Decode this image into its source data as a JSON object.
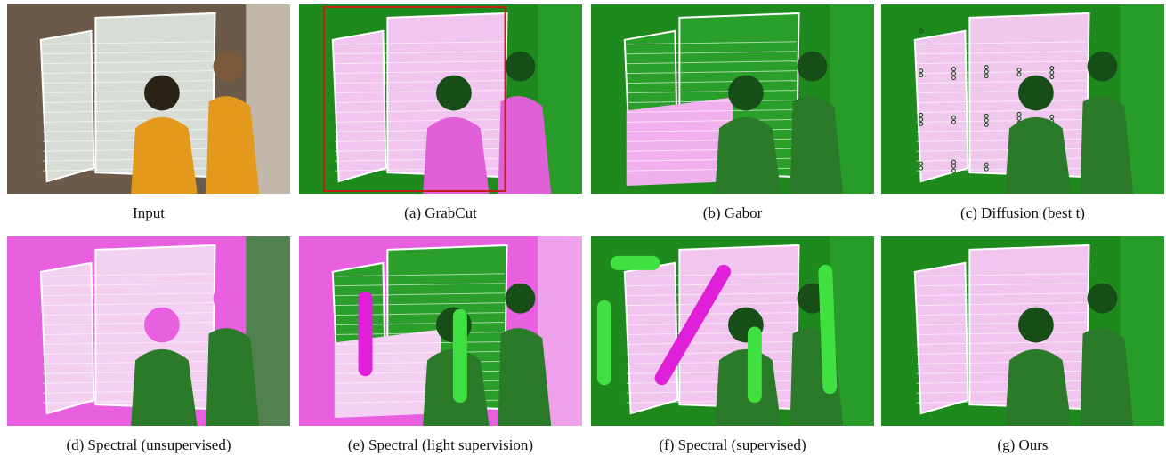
{
  "panels": [
    {
      "caption": "Input"
    },
    {
      "caption": "(a) GrabCut"
    },
    {
      "caption": "(b) Gabor"
    },
    {
      "caption": "(c) Diffusion (best t)"
    },
    {
      "caption": "(d) Spectral (unsupervised)"
    },
    {
      "caption": "(e) Spectral (light supervision)"
    },
    {
      "caption": "(f) Spectral (supervised)"
    },
    {
      "caption": "(g) Ours"
    }
  ]
}
